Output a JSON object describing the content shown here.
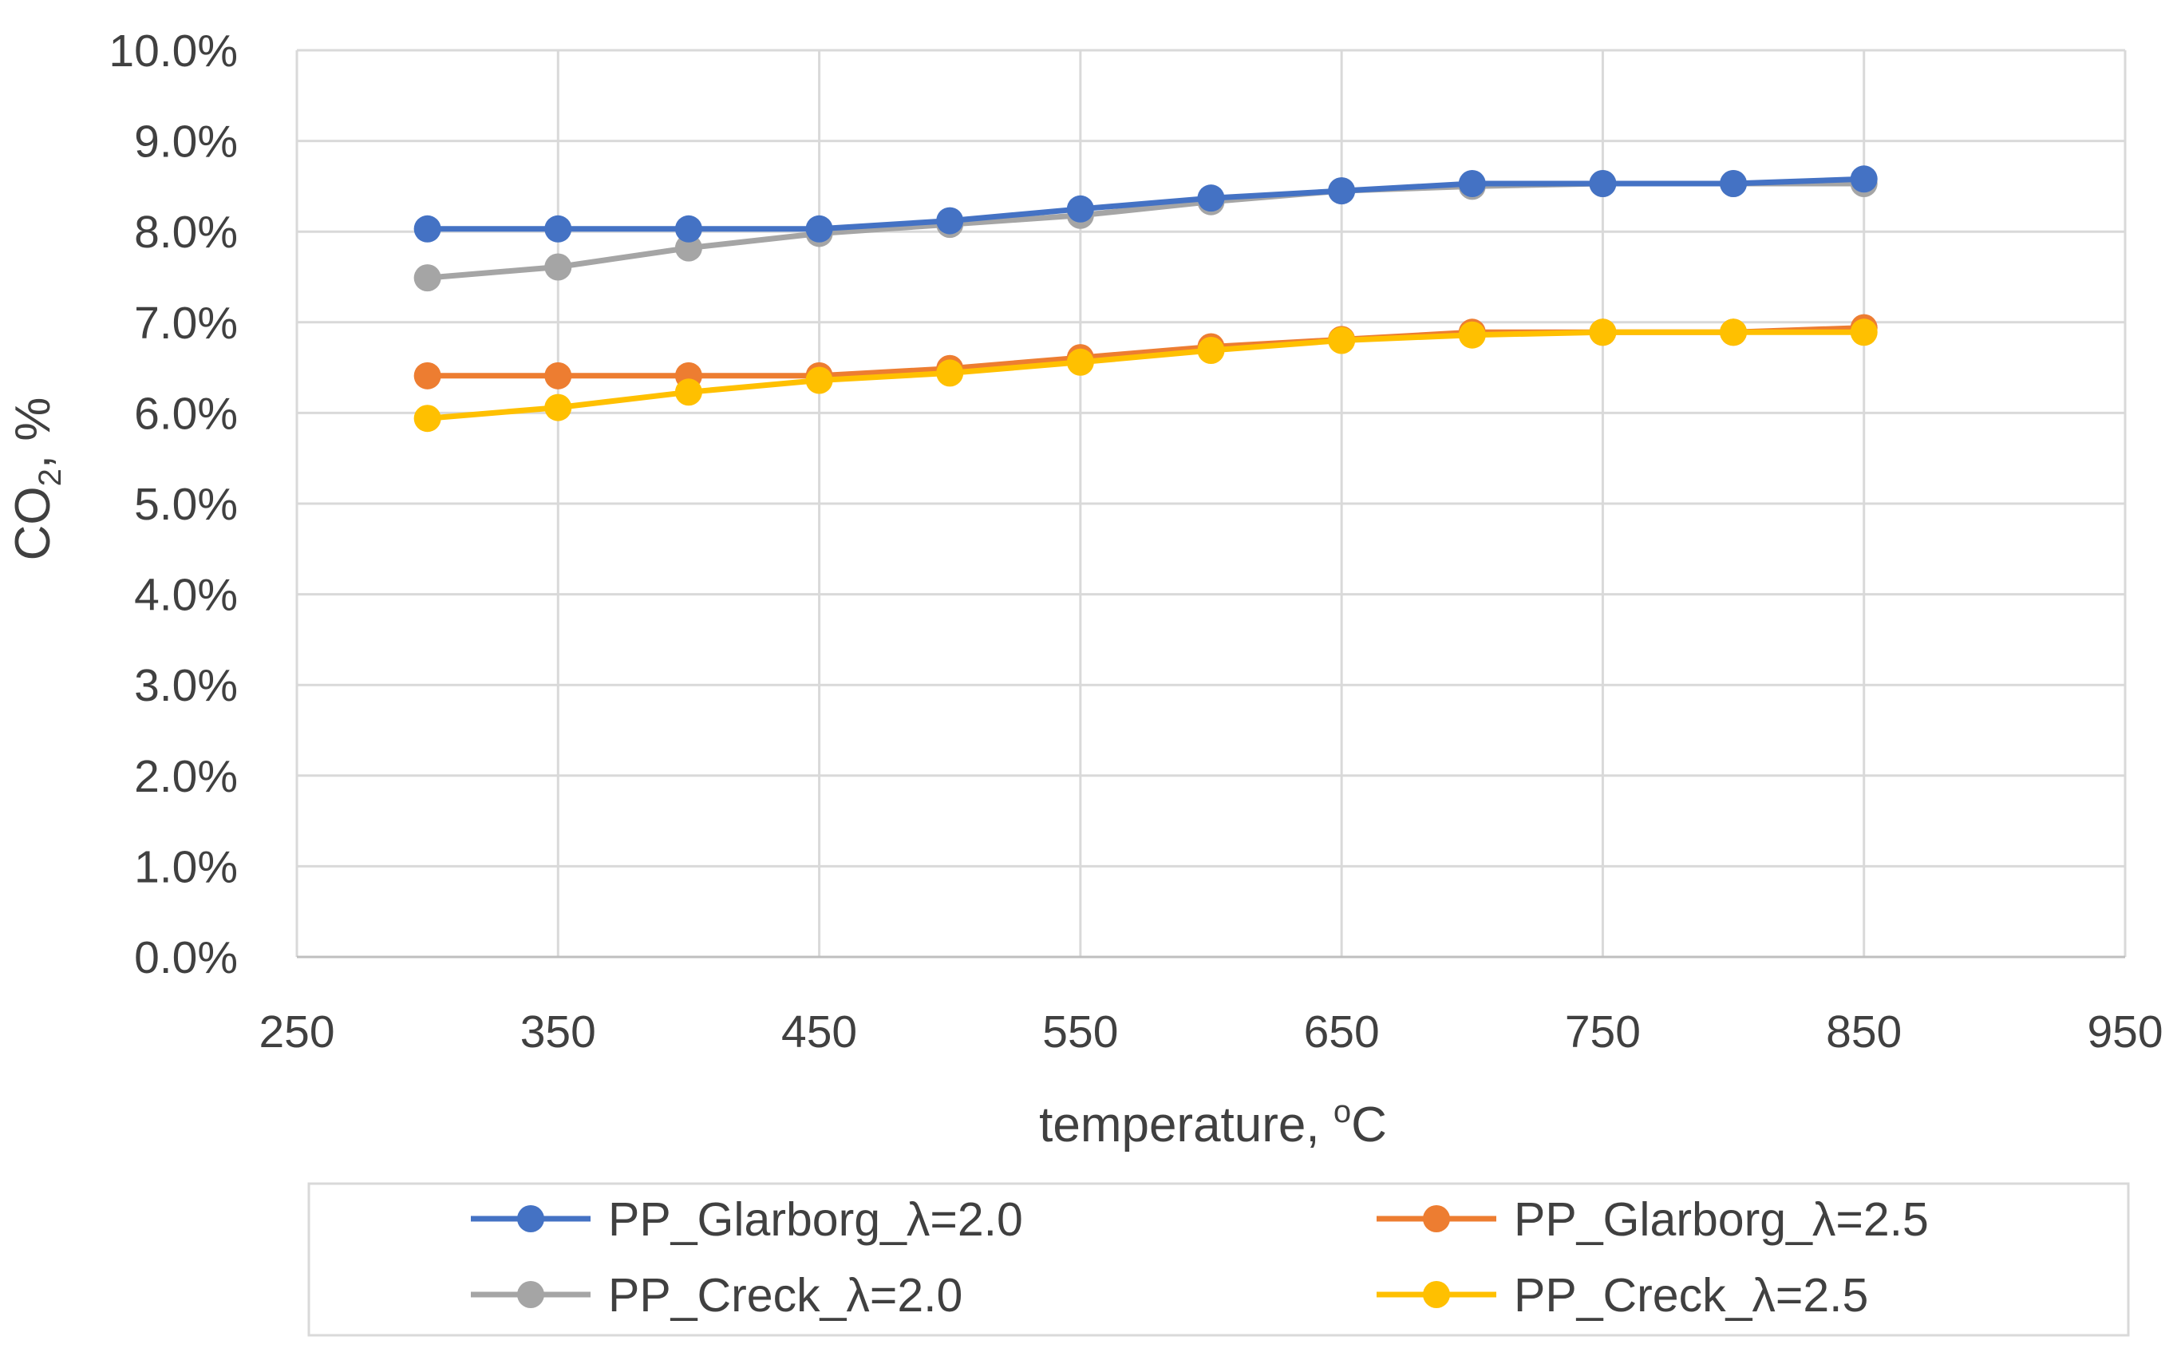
{
  "chart_data": {
    "type": "line",
    "title": "",
    "xlabel": "temperature, °C",
    "xlabel_parts": {
      "main": "temperature, ",
      "sup": "o",
      "tail": "C"
    },
    "ylabel": "CO2, %",
    "ylabel_parts": {
      "main": "CO",
      "sub": "2",
      "tail": ", %"
    },
    "xlim": [
      250,
      950
    ],
    "ylim": [
      0,
      0.1
    ],
    "x_ticks": [
      250,
      350,
      450,
      550,
      650,
      750,
      850,
      950
    ],
    "x_tick_labels": [
      "250",
      "350",
      "450",
      "550",
      "650",
      "750",
      "850",
      "950"
    ],
    "x_vertical_grid": [
      250,
      350,
      450,
      550,
      650,
      750,
      850,
      950
    ],
    "y_ticks": [
      0,
      0.01,
      0.02,
      0.03,
      0.04,
      0.05,
      0.06,
      0.07,
      0.08,
      0.09,
      0.1
    ],
    "y_tick_labels": [
      "0.0%",
      "1.0%",
      "2.0%",
      "3.0%",
      "4.0%",
      "5.0%",
      "6.0%",
      "7.0%",
      "8.0%",
      "9.0%",
      "10.0%"
    ],
    "grid": true,
    "legend_position": "bottom",
    "x": [
      300,
      350,
      400,
      450,
      500,
      550,
      600,
      650,
      700,
      750,
      800,
      850
    ],
    "series": [
      {
        "name": "PP_Glarborg_λ=2.0",
        "color": "#4472C4",
        "values": [
          0.0803,
          0.0803,
          0.0803,
          0.0803,
          0.0812,
          0.0825,
          0.0837,
          0.0845,
          0.0853,
          0.0853,
          0.0853,
          0.0858
        ]
      },
      {
        "name": "PP_Glarborg_λ=2.5",
        "color": "#ED7D31",
        "values": [
          0.0641,
          0.0641,
          0.0641,
          0.0641,
          0.0649,
          0.0661,
          0.0673,
          0.0681,
          0.0689,
          0.0689,
          0.0689,
          0.0694
        ]
      },
      {
        "name": "PP_Creck_λ=2.0",
        "color": "#A5A5A5",
        "values": [
          0.0749,
          0.0761,
          0.0782,
          0.0798,
          0.0808,
          0.0818,
          0.0833,
          0.0845,
          0.085,
          0.0853,
          0.0853,
          0.0853
        ]
      },
      {
        "name": "PP_Creck_λ=2.5",
        "color": "#FFC000",
        "values": [
          0.0594,
          0.0606,
          0.0623,
          0.0636,
          0.0644,
          0.0656,
          0.0669,
          0.068,
          0.0686,
          0.0689,
          0.0689,
          0.0689
        ]
      }
    ],
    "draw_order": [
      2,
      0,
      1,
      3
    ],
    "legend_layout": [
      [
        0,
        1
      ],
      [
        2,
        3
      ]
    ]
  },
  "style": {
    "grid_color": "#D9D9D9",
    "axis_color": "#BFBFBF",
    "text_color": "#404040",
    "legend_border": "#D9D9D9"
  }
}
